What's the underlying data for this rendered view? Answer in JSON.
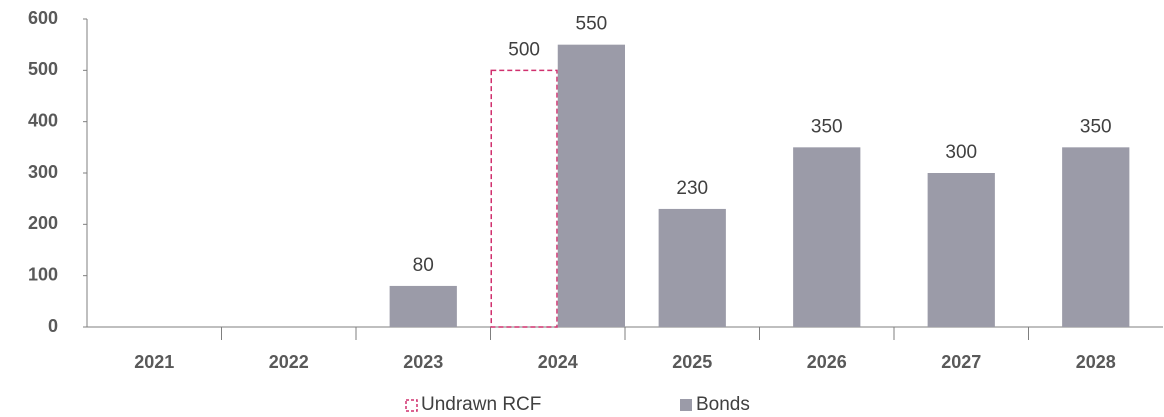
{
  "chart_data": {
    "type": "bar",
    "categories": [
      "2021",
      "2022",
      "2023",
      "2024",
      "2025",
      "2026",
      "2027",
      "2028"
    ],
    "series": [
      {
        "name": "Undrawn RCF",
        "color": "#d0306e",
        "dashed": true,
        "values": [
          null,
          null,
          null,
          500,
          null,
          null,
          null,
          null
        ]
      },
      {
        "name": "Bonds",
        "color": "#9b9ba8",
        "dashed": false,
        "values": [
          null,
          null,
          80,
          550,
          230,
          350,
          300,
          350
        ]
      }
    ],
    "ylim": [
      0,
      600
    ],
    "yticks": [
      0,
      100,
      200,
      300,
      400,
      500,
      600
    ],
    "grid": false,
    "legend": "bottom"
  }
}
